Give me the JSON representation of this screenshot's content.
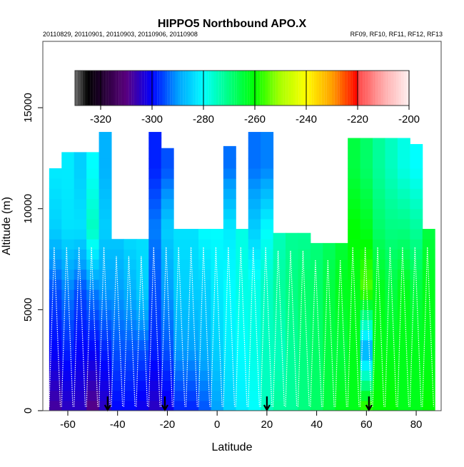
{
  "chart_data": {
    "type": "heatmap",
    "title": "HIPPO5 Northbound APO.X",
    "subtitle_left": "20110829, 20110901, 20110903, 20110906, 20110908",
    "subtitle_right": "RF09, RF10, RF11, RF12, RF13",
    "xlabel": "Latitude",
    "ylabel": "Altitude (m)",
    "xlim": [
      -70,
      90
    ],
    "ylim": [
      0,
      18300
    ],
    "xticks": [
      -60,
      -40,
      -20,
      0,
      20,
      40,
      60,
      80
    ],
    "yticks": [
      0,
      5000,
      10000,
      15000
    ],
    "colorbar": {
      "range": [
        -330,
        -200
      ],
      "ticks": [
        -320,
        -300,
        -280,
        -260,
        -240,
        -220,
        -200
      ],
      "placement": "top"
    },
    "arrow_latitudes": [
      -44,
      -21,
      20,
      61
    ],
    "lat_bins": [
      -65,
      -60,
      -55,
      -50,
      -45,
      -40,
      -35,
      -30,
      -25,
      -20,
      -15,
      -10,
      -5,
      0,
      5,
      10,
      15,
      20,
      25,
      30,
      35,
      40,
      45,
      50,
      55,
      60,
      65,
      70,
      75,
      80,
      85
    ],
    "ceiling_m": [
      12000,
      12800,
      12800,
      12800,
      13800,
      8500,
      8500,
      8500,
      13800,
      13000,
      9000,
      9000,
      9000,
      9000,
      13100,
      9000,
      13800,
      13800,
      8800,
      8800,
      8800,
      8300,
      8300,
      8300,
      13500,
      13500,
      13500,
      13500,
      13500,
      13200,
      9000
    ],
    "profile_altitudes_m": [
      0,
      3000,
      6000,
      9000,
      12000
    ],
    "profiles": [
      [
        -308,
        -300,
        -295,
        -285,
        -282
      ],
      [
        -305,
        -298,
        -292,
        -283,
        -282
      ],
      [
        -305,
        -300,
        -295,
        -283,
        -285
      ],
      [
        -310,
        -300,
        -292,
        -275,
        -280
      ],
      [
        -305,
        -298,
        -290,
        -285,
        -288
      ],
      [
        -300,
        -295,
        -290,
        -285,
        -285
      ],
      [
        -300,
        -295,
        -288,
        -283,
        -283
      ],
      [
        -302,
        -295,
        -285,
        -283,
        -290
      ],
      [
        -305,
        -298,
        -295,
        -292,
        -298
      ],
      [
        -302,
        -295,
        -290,
        -285,
        -295
      ],
      [
        -298,
        -290,
        -285,
        -283,
        -283
      ],
      [
        -298,
        -290,
        -285,
        -283,
        -283
      ],
      [
        -295,
        -288,
        -285,
        -280,
        -280
      ],
      [
        -290,
        -285,
        -282,
        -280,
        -280
      ],
      [
        -285,
        -282,
        -280,
        -282,
        -293
      ],
      [
        -282,
        -280,
        -278,
        -278,
        -280
      ],
      [
        -280,
        -278,
        -278,
        -285,
        -293
      ],
      [
        -275,
        -275,
        -275,
        -280,
        -292
      ],
      [
        -272,
        -275,
        -272,
        -275,
        -275
      ],
      [
        -272,
        -272,
        -270,
        -272,
        -272
      ],
      [
        -270,
        -270,
        -268,
        -272,
        -272
      ],
      [
        -268,
        -268,
        -268,
        -270,
        -270
      ],
      [
        -265,
        -265,
        -265,
        -268,
        -268
      ],
      [
        -262,
        -265,
        -262,
        -265,
        -265
      ],
      [
        -262,
        -262,
        -262,
        -260,
        -265
      ],
      [
        -255,
        -290,
        -255,
        -262,
        -268
      ],
      [
        -260,
        -262,
        -262,
        -268,
        -272
      ],
      [
        -260,
        -262,
        -265,
        -270,
        -275
      ],
      [
        -262,
        -262,
        -262,
        -270,
        -278
      ],
      [
        -262,
        -262,
        -265,
        -272,
        -280
      ],
      [
        -260,
        -262,
        -262,
        -265,
        -265
      ]
    ]
  }
}
